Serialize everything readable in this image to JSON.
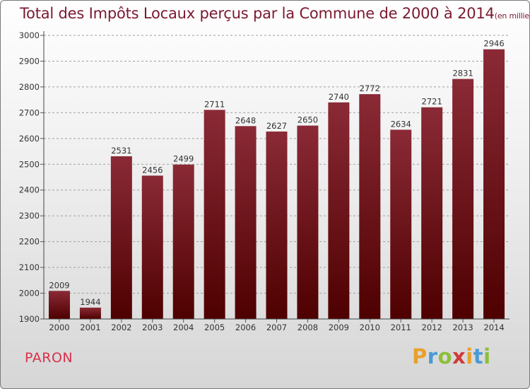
{
  "header": {
    "title": "Total des Impôts Locaux perçus par la Commune de 2000 à 2014",
    "unit": "(en milliers d'€)"
  },
  "commune": "PARON",
  "logo": {
    "letters": [
      "P",
      "r",
      "o",
      "x",
      "i",
      "t",
      "i"
    ],
    "colors": [
      "#e8a12b",
      "#4a9ad4",
      "#8cbf3a",
      "#d03a3a",
      "#e8a12b",
      "#4a9ad4",
      "#8cbf3a"
    ]
  },
  "colors": {
    "bar_top": "#8a2a36",
    "bar_bottom": "#4e0000",
    "grid": "#a0a0a0"
  },
  "chart_data": {
    "type": "bar",
    "title": "Total des Impôts Locaux perçus par la Commune de 2000 à 2014",
    "xlabel": "",
    "ylabel": "(en milliers d'€)",
    "categories": [
      "2000",
      "2001",
      "2002",
      "2003",
      "2004",
      "2005",
      "2006",
      "2007",
      "2008",
      "2009",
      "2010",
      "2011",
      "2012",
      "2013",
      "2014"
    ],
    "values": [
      2009,
      1944,
      2531,
      2456,
      2499,
      2711,
      2648,
      2627,
      2650,
      2740,
      2772,
      2634,
      2721,
      2831,
      2946
    ],
    "ylim": [
      1900,
      3000
    ],
    "yticks": [
      1900,
      2000,
      2100,
      2200,
      2300,
      2400,
      2500,
      2600,
      2700,
      2800,
      2900,
      3000
    ],
    "grid": true
  }
}
